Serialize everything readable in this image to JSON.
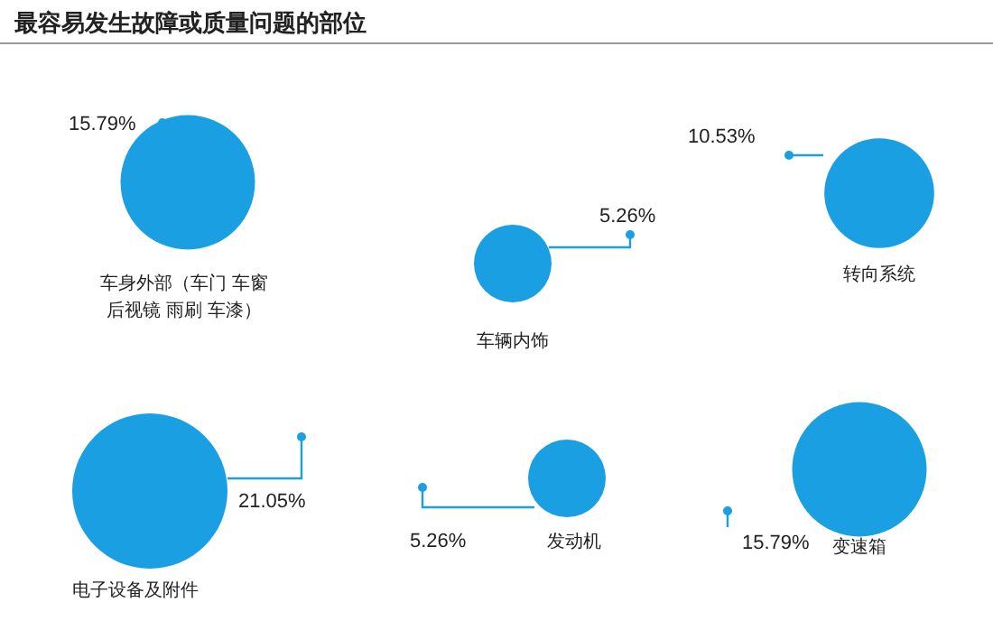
{
  "chart_data": {
    "type": "other",
    "title": "最容易发生故障或质量问题的部位",
    "categories": [
      "车身外部（车门 车窗后视镜 雨刷 车漆）",
      "车辆内饰",
      "转向系统",
      "电子设备及附件",
      "发动机",
      "变速箱"
    ],
    "values": [
      15.79,
      5.26,
      10.53,
      21.05,
      5.26,
      15.79
    ],
    "value_labels": [
      "15.79%",
      "5.26%",
      "10.53%",
      "21.05%",
      "5.26%",
      "15.79%"
    ],
    "color": "#1a9fe3"
  }
}
